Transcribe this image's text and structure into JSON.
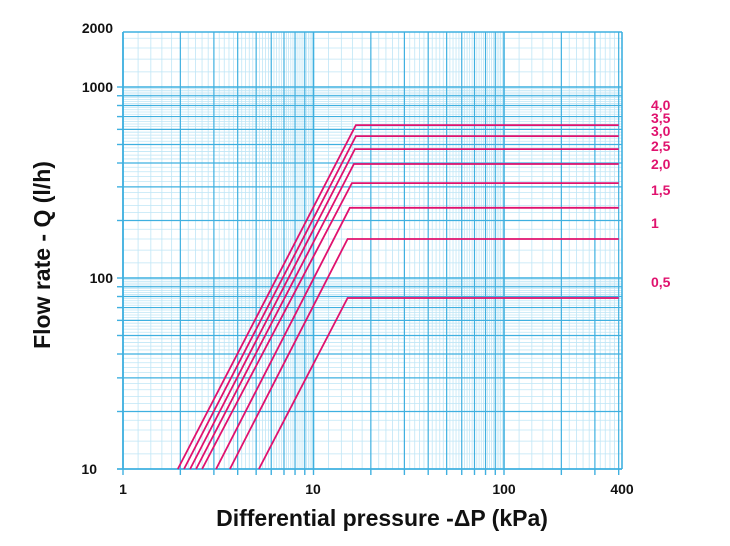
{
  "chart_data": {
    "type": "line",
    "scale": "log-log",
    "title": "",
    "xlabel": "Differential pressure -ΔP (kPa)",
    "ylabel": "Flow rate - Q (l/h)",
    "xlim": [
      1,
      400
    ],
    "ylim": [
      10,
      2000
    ],
    "x_ticks": [
      {
        "value": 1,
        "label": "1"
      },
      {
        "value": 10,
        "label": "10"
      },
      {
        "value": 100,
        "label": "100"
      },
      {
        "value": 400,
        "label": "400"
      }
    ],
    "y_ticks": [
      {
        "value": 10,
        "label": "10"
      },
      {
        "value": 100,
        "label": "100"
      },
      {
        "value": 1000,
        "label": "1000"
      },
      {
        "value": 2000,
        "label": "2000"
      }
    ],
    "grid": true,
    "legend": "right (labels at line ends)",
    "series": [
      {
        "name": "4,0",
        "points": [
          [
            1.94,
            10
          ],
          [
            16.7,
            632
          ],
          [
            400,
            632
          ]
        ]
      },
      {
        "name": "3,5",
        "points": [
          [
            2.09,
            10
          ],
          [
            16.7,
            553
          ],
          [
            400,
            553
          ]
        ]
      },
      {
        "name": "3,0",
        "points": [
          [
            2.25,
            10
          ],
          [
            16.5,
            473
          ],
          [
            400,
            473
          ]
        ]
      },
      {
        "name": "2,5",
        "points": [
          [
            2.42,
            10
          ],
          [
            16.3,
            395
          ],
          [
            400,
            395
          ]
        ]
      },
      {
        "name": "2,0",
        "points": [
          [
            2.6,
            10
          ],
          [
            15.9,
            314
          ],
          [
            400,
            314
          ]
        ]
      },
      {
        "name": "1,5",
        "points": [
          [
            3.08,
            10
          ],
          [
            15.5,
            233
          ],
          [
            400,
            233
          ]
        ]
      },
      {
        "name": "1",
        "points": [
          [
            3.64,
            10
          ],
          [
            15.1,
            160
          ],
          [
            400,
            160
          ]
        ]
      },
      {
        "name": "0,5",
        "points": [
          [
            5.17,
            10
          ],
          [
            15.1,
            78.6
          ],
          [
            400,
            78.6
          ]
        ]
      }
    ]
  },
  "colors": {
    "series": "#e0126e",
    "grid_major": "#3fb0e0",
    "grid_minor": "#bfe6f6",
    "text": "#111111"
  }
}
